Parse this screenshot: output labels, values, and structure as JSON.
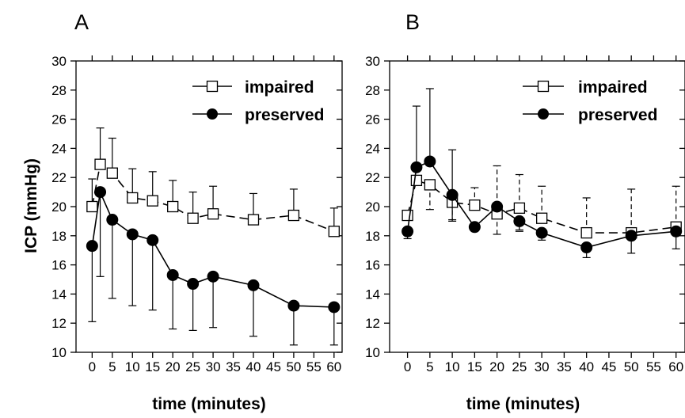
{
  "ylabel": "ICP (mmHg)",
  "chart_data": [
    {
      "type": "line",
      "panel_label": "A",
      "xlabel": "time (minutes)",
      "ylabel": "ICP (mmHg)",
      "x_ticks": [
        0,
        5,
        10,
        15,
        20,
        25,
        30,
        35,
        40,
        45,
        50,
        55,
        60
      ],
      "y_ticks": [
        10,
        12,
        14,
        16,
        18,
        20,
        22,
        24,
        26,
        28,
        30
      ],
      "xlim": [
        -4,
        62
      ],
      "ylim": [
        10,
        30
      ],
      "legend_position": "top-right",
      "series": [
        {
          "name": "impaired",
          "marker": "open-square",
          "line_style": "dashed",
          "x": [
            0,
            2,
            5,
            10,
            15,
            20,
            25,
            30,
            40,
            50,
            60
          ],
          "y": [
            20.0,
            22.9,
            22.3,
            20.6,
            20.4,
            20.0,
            19.2,
            19.5,
            19.1,
            19.4,
            18.3
          ],
          "error_upper": [
            1.9,
            2.5,
            2.4,
            2.0,
            2.0,
            1.8,
            1.8,
            1.9,
            1.8,
            1.8,
            1.6
          ],
          "error_lower": [
            0,
            0,
            0,
            0,
            0,
            0,
            0,
            0,
            0,
            0,
            0
          ]
        },
        {
          "name": "preserved",
          "marker": "filled-circle",
          "line_style": "solid",
          "x": [
            0,
            2,
            5,
            10,
            15,
            20,
            25,
            30,
            40,
            50,
            60
          ],
          "y": [
            17.3,
            21.0,
            19.1,
            18.1,
            17.7,
            15.3,
            14.7,
            15.2,
            14.6,
            13.2,
            13.1
          ],
          "error_upper": [
            0,
            0,
            0,
            0,
            0,
            0,
            0,
            0,
            0,
            0,
            0
          ],
          "error_lower": [
            5.2,
            5.8,
            5.4,
            4.9,
            4.8,
            3.7,
            3.2,
            3.5,
            3.5,
            2.7,
            2.6
          ]
        }
      ]
    },
    {
      "type": "line",
      "panel_label": "B",
      "xlabel": "time (minutes)",
      "ylabel": "",
      "x_ticks": [
        0,
        5,
        10,
        15,
        20,
        25,
        30,
        35,
        40,
        45,
        50,
        55,
        60
      ],
      "y_ticks": [
        10,
        12,
        14,
        16,
        18,
        20,
        22,
        24,
        26,
        28,
        30
      ],
      "xlim": [
        -4,
        62
      ],
      "ylim": [
        10,
        30
      ],
      "legend_position": "top-right",
      "series": [
        {
          "name": "impaired",
          "marker": "open-square",
          "line_style": "dashed",
          "x": [
            0,
            2,
            5,
            10,
            15,
            20,
            25,
            30,
            40,
            50,
            60
          ],
          "y": [
            19.4,
            21.8,
            21.5,
            20.3,
            20.1,
            19.5,
            19.9,
            19.2,
            18.2,
            18.2,
            18.6
          ],
          "error_upper": [
            0,
            0,
            0,
            0,
            1.2,
            3.3,
            2.3,
            2.2,
            2.4,
            3.0,
            2.8
          ],
          "error_lower": [
            0,
            0,
            1.7,
            1.2,
            0,
            1.4,
            1.6,
            0,
            0,
            0,
            0
          ],
          "error_line_style": "dashed"
        },
        {
          "name": "preserved",
          "marker": "filled-circle",
          "line_style": "solid",
          "x": [
            0,
            2,
            5,
            10,
            15,
            20,
            25,
            30,
            40,
            50,
            60
          ],
          "y": [
            18.3,
            22.7,
            23.1,
            20.8,
            18.6,
            20.0,
            19.0,
            18.2,
            17.2,
            18.0,
            18.3
          ],
          "error_upper": [
            0,
            4.2,
            5.0,
            3.1,
            0,
            0,
            0,
            0,
            0,
            0,
            0
          ],
          "error_lower": [
            0.5,
            0,
            0,
            1.8,
            0,
            0,
            0.6,
            0.5,
            0.7,
            1.2,
            1.2
          ]
        }
      ]
    }
  ]
}
